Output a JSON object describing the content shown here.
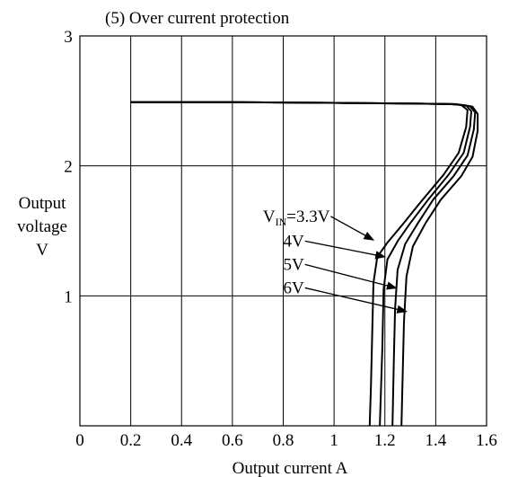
{
  "chart_data": {
    "type": "line",
    "title": "(5)   Over current protection",
    "xlabel": "Output current   A",
    "ylabel_lines": [
      "Output",
      "voltage",
      "V"
    ],
    "xlim": [
      0,
      1.6
    ],
    "ylim": [
      0,
      3
    ],
    "x_ticks": [
      "0",
      "0.2",
      "0.4",
      "0.6",
      "0.8",
      "1",
      "1.2",
      "1.4",
      "1.6"
    ],
    "y_ticks": [
      "1",
      "2",
      "3"
    ],
    "grid": true,
    "series": [
      {
        "name": "VIN=3.3V",
        "points": [
          [
            0.2,
            2.49
          ],
          [
            0.6,
            2.49
          ],
          [
            1.0,
            2.485
          ],
          [
            1.3,
            2.48
          ],
          [
            1.45,
            2.475
          ],
          [
            1.5,
            2.47
          ],
          [
            1.525,
            2.43
          ],
          [
            1.52,
            2.3
          ],
          [
            1.49,
            2.1
          ],
          [
            1.43,
            1.93
          ],
          [
            1.34,
            1.72
          ],
          [
            1.27,
            1.55
          ],
          [
            1.21,
            1.41
          ],
          [
            1.17,
            1.3
          ],
          [
            1.155,
            1.1
          ],
          [
            1.15,
            0.7
          ],
          [
            1.145,
            0.3
          ],
          [
            1.14,
            0.0
          ]
        ]
      },
      {
        "name": "4V",
        "points": [
          [
            0.2,
            2.49
          ],
          [
            0.6,
            2.49
          ],
          [
            1.0,
            2.485
          ],
          [
            1.3,
            2.48
          ],
          [
            1.46,
            2.475
          ],
          [
            1.52,
            2.465
          ],
          [
            1.54,
            2.42
          ],
          [
            1.535,
            2.3
          ],
          [
            1.51,
            2.1
          ],
          [
            1.45,
            1.93
          ],
          [
            1.37,
            1.74
          ],
          [
            1.3,
            1.56
          ],
          [
            1.25,
            1.42
          ],
          [
            1.21,
            1.28
          ],
          [
            1.195,
            1.05
          ],
          [
            1.19,
            0.6
          ],
          [
            1.185,
            0.3
          ],
          [
            1.18,
            0.0
          ]
        ]
      },
      {
        "name": "5V",
        "points": [
          [
            0.2,
            2.49
          ],
          [
            0.6,
            2.49
          ],
          [
            1.0,
            2.485
          ],
          [
            1.3,
            2.48
          ],
          [
            1.47,
            2.475
          ],
          [
            1.535,
            2.46
          ],
          [
            1.555,
            2.41
          ],
          [
            1.55,
            2.28
          ],
          [
            1.525,
            2.08
          ],
          [
            1.47,
            1.92
          ],
          [
            1.39,
            1.74
          ],
          [
            1.33,
            1.56
          ],
          [
            1.28,
            1.4
          ],
          [
            1.25,
            1.2
          ],
          [
            1.24,
            0.9
          ],
          [
            1.235,
            0.5
          ],
          [
            1.23,
            0.0
          ]
        ]
      },
      {
        "name": "6V",
        "points": [
          [
            0.2,
            2.49
          ],
          [
            0.6,
            2.49
          ],
          [
            1.0,
            2.485
          ],
          [
            1.3,
            2.48
          ],
          [
            1.48,
            2.475
          ],
          [
            1.545,
            2.455
          ],
          [
            1.565,
            2.4
          ],
          [
            1.565,
            2.27
          ],
          [
            1.545,
            2.07
          ],
          [
            1.5,
            1.92
          ],
          [
            1.42,
            1.74
          ],
          [
            1.36,
            1.56
          ],
          [
            1.31,
            1.38
          ],
          [
            1.285,
            1.15
          ],
          [
            1.275,
            0.8
          ],
          [
            1.27,
            0.4
          ],
          [
            1.265,
            0.0
          ]
        ]
      }
    ],
    "annotations": [
      {
        "main": "V",
        "sub": "IN",
        "rest": "=3.3V",
        "text_at": [
          0.72,
          1.57
        ],
        "arrow_to": [
          1.155,
          1.43
        ]
      },
      {
        "main": "4V",
        "sub": "",
        "rest": "",
        "text_at": [
          0.8,
          1.38
        ],
        "arrow_to": [
          1.2,
          1.3
        ]
      },
      {
        "main": "5V",
        "sub": "",
        "rest": "",
        "text_at": [
          0.8,
          1.2
        ],
        "arrow_to": [
          1.245,
          1.06
        ]
      },
      {
        "main": "6V",
        "sub": "",
        "rest": "",
        "text_at": [
          0.8,
          1.02
        ],
        "arrow_to": [
          1.285,
          0.88
        ]
      }
    ],
    "line_color": "#000000",
    "grid_color": "#000000"
  }
}
